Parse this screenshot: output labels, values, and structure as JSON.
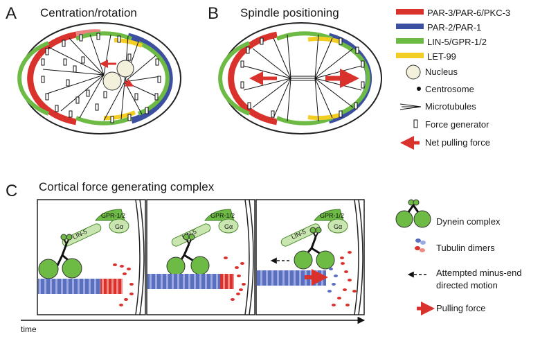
{
  "panel_a": {
    "letter": "A",
    "title": "Centration/rotation"
  },
  "panel_b": {
    "letter": "B",
    "title": "Spindle positioning"
  },
  "panel_c": {
    "letter": "C",
    "title": "Cortical force generating complex",
    "time_label": "time"
  },
  "complex_labels": {
    "gpr": "GPR-1/2",
    "lin5": "LIN-5",
    "galpha": "Gα"
  },
  "legend_top": [
    {
      "label": "PAR-3/PAR-6/PKC-3",
      "color": "#d9312b",
      "icon": "red-bar"
    },
    {
      "label": "PAR-2/PAR-1",
      "color": "#3c4fa0",
      "icon": "blue-bar"
    },
    {
      "label": "LIN-5/GPR-1/2",
      "color": "#6dbb45",
      "icon": "green-bar"
    },
    {
      "label": "LET-99",
      "color": "#f3cd21",
      "icon": "yellow-bar"
    },
    {
      "label": "Nucleus",
      "icon": "nucleus-icon"
    },
    {
      "label": "Centrosome",
      "icon": "centrosome-icon"
    },
    {
      "label": "Microtubules",
      "icon": "microtubules-icon"
    },
    {
      "label": "Force generator",
      "icon": "force-generator-icon"
    },
    {
      "label": "Net pulling force",
      "color": "#d9312b",
      "icon": "arrow-icon"
    }
  ],
  "legend_bottom": [
    {
      "label": "Dynein complex",
      "icon": "dynein-icon"
    },
    {
      "label": "Tubulin dimers",
      "icon": "tubulin-icon"
    },
    {
      "label": "Attempted minus-end",
      "label2": "directed motion",
      "icon": "dashed-arrow-icon"
    },
    {
      "label": "Pulling force",
      "color": "#d9312b",
      "icon": "arrow-icon"
    }
  ],
  "colors": {
    "red": "#d9312b",
    "blue": "#3c4fa0",
    "green": "#6dbb45",
    "yellow": "#f3cd21",
    "nucleus": "#f3f0dc",
    "dynein": "#6dbb45"
  }
}
